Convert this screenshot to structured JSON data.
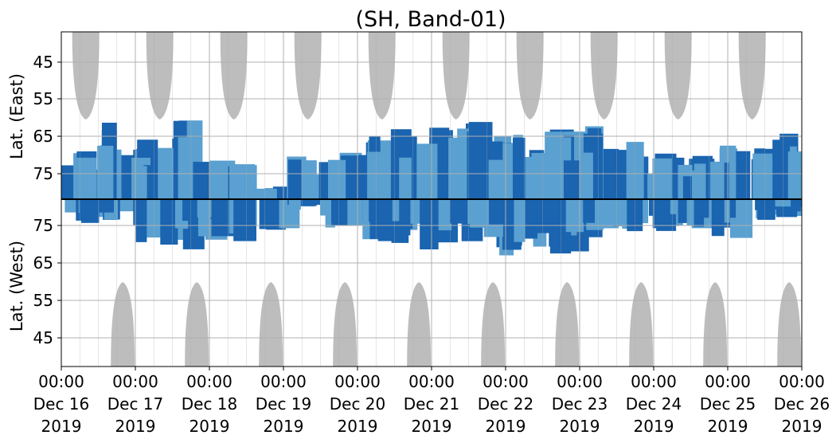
{
  "chart_data": {
    "type": "heatmap",
    "title": "(SH, Band-01)",
    "ylabel_upper": "Lat. (East)",
    "ylabel_lower": "Lat. (West)",
    "x_range": [
      "2019-12-16 00:00",
      "2019-12-26 00:00"
    ],
    "x_ticks": [
      {
        "time": "00:00",
        "date": "Dec 16",
        "year": "2019"
      },
      {
        "time": "00:00",
        "date": "Dec 17",
        "year": "2019"
      },
      {
        "time": "00:00",
        "date": "Dec 18",
        "year": "2019"
      },
      {
        "time": "00:00",
        "date": "Dec 19",
        "year": "2019"
      },
      {
        "time": "00:00",
        "date": "Dec 20",
        "year": "2019"
      },
      {
        "time": "00:00",
        "date": "Dec 21",
        "year": "2019"
      },
      {
        "time": "00:00",
        "date": "Dec 22",
        "year": "2019"
      },
      {
        "time": "00:00",
        "date": "Dec 23",
        "year": "2019"
      },
      {
        "time": "00:00",
        "date": "Dec 24",
        "year": "2019"
      },
      {
        "time": "00:00",
        "date": "Dec 25",
        "year": "2019"
      },
      {
        "time": "00:00",
        "date": "Dec 26",
        "year": "2019"
      }
    ],
    "east_ticks": [
      "45",
      "55",
      "65",
      "75"
    ],
    "west_ticks": [
      "75",
      "65",
      "55",
      "45"
    ],
    "grid": true,
    "colors": {
      "dark": "#1a64b0",
      "light": "#5aa0d0",
      "daylight": "#bdbdbd",
      "divider": "#000000",
      "grid": "#b0b0b0"
    },
    "east_activity": [
      0.6,
      0.95,
      0.7,
      0.95,
      0.45,
      0.4,
      0.15,
      0.5,
      0.6,
      0.75,
      0.85,
      0.9,
      0.9,
      0.8,
      0.8,
      0.85,
      0.95,
      0.7,
      0.55,
      0.5,
      0.75,
      0.9,
      0.9
    ],
    "west_activity": [
      0.35,
      0.3,
      0.6,
      0.75,
      0.6,
      0.75,
      0.5,
      0.15,
      0.5,
      0.6,
      0.65,
      0.8,
      0.7,
      0.8,
      0.7,
      0.85,
      0.55,
      0.55,
      0.5,
      0.5,
      0.6,
      0.3,
      0.25
    ]
  }
}
